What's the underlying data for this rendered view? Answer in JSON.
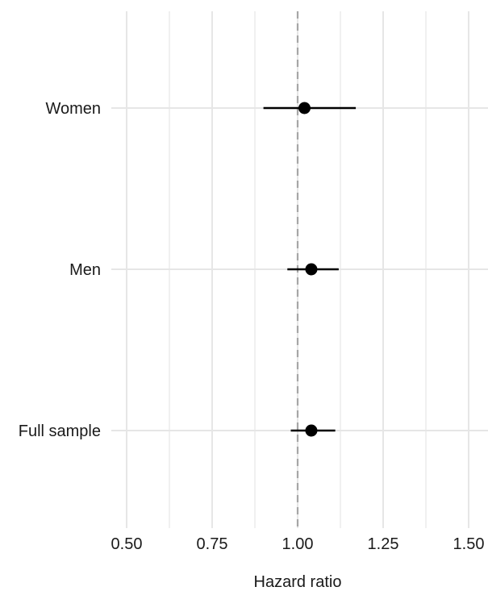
{
  "chart_data": {
    "type": "scatter",
    "subtype": "forest-plot",
    "title": "",
    "xlabel": "Hazard ratio",
    "ylabel": "",
    "xlim": [
      0.5,
      1.5
    ],
    "xticks": [
      0.5,
      0.75,
      1.0,
      1.25,
      1.5
    ],
    "xtick_labels": [
      "0.50",
      "0.75",
      "1.00",
      "1.25",
      "1.50"
    ],
    "reference_line": 1.0,
    "grid": true,
    "categories": [
      "Women",
      "Men",
      "Full sample"
    ],
    "series": [
      {
        "estimate": [
          1.02,
          1.04,
          1.04
        ],
        "ci_low": [
          0.9,
          0.97,
          0.98
        ],
        "ci_high": [
          1.17,
          1.12,
          1.11
        ]
      }
    ],
    "colors": {
      "point": "#000000",
      "reference_line": "#a6a6a6",
      "grid": "#e6e6e6"
    }
  }
}
